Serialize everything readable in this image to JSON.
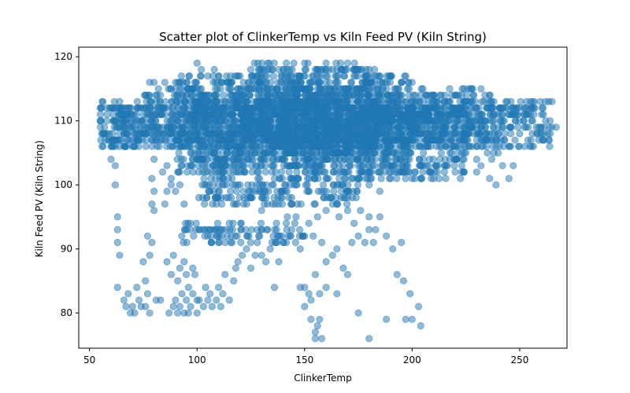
{
  "chart_data": {
    "type": "scatter",
    "title": "Scatter plot of ClinkerTemp vs Kiln Feed PV (Kiln String)",
    "xlabel": "ClinkerTemp",
    "ylabel": "Kiln Feed PV (Kiln String)",
    "xlim": [
      45,
      272
    ],
    "ylim": [
      74.5,
      121.5
    ],
    "xticks": [
      50,
      100,
      150,
      200,
      250
    ],
    "yticks": [
      80,
      90,
      100,
      110,
      120
    ],
    "grid": false,
    "marker_color": "#1f77b4",
    "marker_alpha": 0.5,
    "bands": [
      {
        "x": [
          55,
          265
        ],
        "y": [
          106,
          113
        ]
      },
      {
        "x": [
          75,
          238
        ],
        "y": [
          106,
          115
        ]
      },
      {
        "x": [
          90,
          200
        ],
        "y": [
          102,
          117
        ]
      },
      {
        "x": [
          125,
          185
        ],
        "y": [
          104,
          119
        ]
      },
      {
        "x": [
          100,
          225
        ],
        "y": [
          101,
          113
        ]
      },
      {
        "x": [
          100,
          175
        ],
        "y": [
          97,
          101
        ]
      },
      {
        "x": [
          92,
          150
        ],
        "y": [
          91,
          94
        ]
      },
      {
        "x": [
          60,
          75
        ],
        "y": [
          106,
          113
        ]
      }
    ],
    "points": [
      [
        55,
        110
      ],
      [
        56,
        113
      ],
      [
        57,
        109
      ],
      [
        58,
        108
      ],
      [
        60,
        112
      ],
      [
        61,
        107
      ],
      [
        62,
        103
      ],
      [
        62,
        100
      ],
      [
        63,
        95
      ],
      [
        63,
        93
      ],
      [
        63,
        91
      ],
      [
        64,
        89
      ],
      [
        63,
        84
      ],
      [
        61,
        111
      ],
      [
        64,
        113
      ],
      [
        66,
        110
      ],
      [
        65,
        107
      ],
      [
        62,
        106
      ],
      [
        60,
        104
      ],
      [
        66,
        82
      ],
      [
        67,
        81
      ],
      [
        68,
        83
      ],
      [
        69,
        80
      ],
      [
        70,
        81
      ],
      [
        71,
        80
      ],
      [
        72,
        84
      ],
      [
        73,
        82
      ],
      [
        74,
        81
      ],
      [
        76,
        81
      ],
      [
        77,
        83
      ],
      [
        78,
        80
      ],
      [
        75,
        88
      ],
      [
        76,
        85
      ],
      [
        77,
        92
      ],
      [
        78,
        89
      ],
      [
        79,
        91
      ],
      [
        80,
        99
      ],
      [
        79,
        97
      ],
      [
        80,
        96
      ],
      [
        80,
        104
      ],
      [
        79,
        101
      ],
      [
        81,
        82
      ],
      [
        83,
        82
      ],
      [
        87,
        80
      ],
      [
        89,
        81
      ],
      [
        90,
        82
      ],
      [
        91,
        80
      ],
      [
        92,
        81
      ],
      [
        93,
        83
      ],
      [
        94,
        80
      ],
      [
        95,
        82
      ],
      [
        96,
        80
      ],
      [
        97,
        81
      ],
      [
        98,
        83
      ],
      [
        100,
        80
      ],
      [
        86,
        88
      ],
      [
        88,
        86
      ],
      [
        89,
        89
      ],
      [
        91,
        85
      ],
      [
        92,
        87
      ],
      [
        94,
        88
      ],
      [
        95,
        86
      ],
      [
        96,
        84
      ],
      [
        98,
        87
      ],
      [
        99,
        86
      ],
      [
        100,
        82
      ],
      [
        85,
        97
      ],
      [
        86,
        99
      ],
      [
        88,
        100
      ],
      [
        90,
        99
      ],
      [
        92,
        100
      ],
      [
        94,
        97
      ],
      [
        84,
        102
      ],
      [
        86,
        103
      ],
      [
        88,
        101
      ],
      [
        101,
        82
      ],
      [
        103,
        81
      ],
      [
        104,
        84
      ],
      [
        105,
        82
      ],
      [
        106,
        83
      ],
      [
        107,
        81
      ],
      [
        109,
        82
      ],
      [
        110,
        84
      ],
      [
        111,
        81
      ],
      [
        112,
        83
      ],
      [
        113,
        86
      ],
      [
        115,
        82
      ],
      [
        117,
        85
      ],
      [
        118,
        87
      ],
      [
        119,
        88
      ],
      [
        121,
        89
      ],
      [
        123,
        90
      ],
      [
        125,
        87
      ],
      [
        127,
        89
      ],
      [
        128,
        91
      ],
      [
        130,
        89
      ],
      [
        132,
        88
      ],
      [
        134,
        90
      ],
      [
        136,
        84
      ],
      [
        138,
        88
      ],
      [
        140,
        91
      ],
      [
        142,
        95
      ],
      [
        144,
        93
      ],
      [
        146,
        95
      ],
      [
        148,
        90
      ],
      [
        150,
        92
      ],
      [
        152,
        94
      ],
      [
        154,
        92
      ],
      [
        156,
        95
      ],
      [
        158,
        91
      ],
      [
        150,
        84
      ],
      [
        152,
        83
      ],
      [
        153,
        82
      ],
      [
        155,
        86
      ],
      [
        157,
        83
      ],
      [
        160,
        84
      ],
      [
        165,
        83
      ],
      [
        150,
        81
      ],
      [
        148,
        84
      ],
      [
        153,
        79
      ],
      [
        155,
        77
      ],
      [
        156,
        78
      ],
      [
        157,
        79
      ],
      [
        158,
        76
      ],
      [
        155,
        76
      ],
      [
        160,
        88
      ],
      [
        163,
        89
      ],
      [
        165,
        90
      ],
      [
        168,
        87
      ],
      [
        170,
        86
      ],
      [
        172,
        91
      ],
      [
        175,
        92
      ],
      [
        178,
        91
      ],
      [
        180,
        93
      ],
      [
        182,
        91
      ],
      [
        185,
        95
      ],
      [
        160,
        96
      ],
      [
        163,
        97
      ],
      [
        166,
        95
      ],
      [
        170,
        96
      ],
      [
        173,
        94
      ],
      [
        176,
        96
      ],
      [
        180,
        95
      ],
      [
        183,
        93
      ],
      [
        175,
        80
      ],
      [
        180,
        76
      ],
      [
        188,
        79
      ],
      [
        193,
        86
      ],
      [
        197,
        79
      ],
      [
        196,
        85
      ],
      [
        199,
        83
      ],
      [
        200,
        79
      ],
      [
        204,
        78
      ],
      [
        203,
        81
      ],
      [
        188,
        92
      ],
      [
        191,
        90
      ],
      [
        195,
        91
      ],
      [
        175,
        101
      ],
      [
        180,
        100
      ],
      [
        185,
        99
      ],
      [
        190,
        101
      ],
      [
        195,
        102
      ],
      [
        200,
        101
      ],
      [
        205,
        102
      ],
      [
        210,
        101
      ],
      [
        215,
        102
      ],
      [
        220,
        102
      ],
      [
        230,
        102
      ],
      [
        232,
        103
      ],
      [
        236,
        101
      ],
      [
        239,
        100
      ],
      [
        242,
        103
      ],
      [
        245,
        101
      ],
      [
        247,
        103
      ],
      [
        240,
        108
      ],
      [
        243,
        107
      ],
      [
        246,
        109
      ],
      [
        248,
        110
      ],
      [
        250,
        108
      ],
      [
        252,
        111
      ],
      [
        254,
        109
      ],
      [
        256,
        110
      ],
      [
        258,
        108
      ],
      [
        260,
        109
      ],
      [
        262,
        110
      ],
      [
        265,
        109
      ],
      [
        267,
        109
      ],
      [
        248,
        111
      ],
      [
        252,
        112
      ],
      [
        255,
        113
      ],
      [
        245,
        106
      ],
      [
        240,
        105
      ],
      [
        238,
        105
      ],
      [
        242,
        112
      ],
      [
        246,
        113
      ],
      [
        250,
        112
      ],
      [
        225,
        105
      ],
      [
        228,
        106
      ],
      [
        232,
        107
      ],
      [
        235,
        105
      ],
      [
        237,
        104
      ],
      [
        230,
        104
      ],
      [
        140,
        118
      ],
      [
        145,
        119
      ],
      [
        150,
        119
      ],
      [
        155,
        118
      ],
      [
        160,
        119
      ],
      [
        165,
        118
      ],
      [
        170,
        119
      ],
      [
        175,
        118
      ],
      [
        180,
        118
      ],
      [
        185,
        117
      ],
      [
        190,
        117
      ],
      [
        195,
        116
      ],
      [
        100,
        119
      ],
      [
        102,
        118
      ],
      [
        105,
        117
      ],
      [
        108,
        118
      ],
      [
        110,
        117
      ],
      [
        115,
        116
      ],
      [
        120,
        117
      ],
      [
        125,
        118
      ],
      [
        130,
        117
      ],
      [
        135,
        118
      ],
      [
        78,
        116
      ],
      [
        80,
        116
      ],
      [
        82,
        115
      ],
      [
        85,
        116
      ],
      [
        88,
        115
      ],
      [
        90,
        116
      ],
      [
        93,
        115
      ],
      [
        95,
        116
      ],
      [
        98,
        115
      ],
      [
        200,
        116
      ],
      [
        205,
        115
      ],
      [
        210,
        114
      ],
      [
        215,
        113
      ],
      [
        220,
        114
      ],
      [
        225,
        113
      ],
      [
        230,
        112
      ],
      [
        235,
        112
      ],
      [
        238,
        113
      ],
      [
        60,
        106
      ],
      [
        62,
        107
      ],
      [
        64,
        106
      ],
      [
        66,
        108
      ],
      [
        68,
        107
      ],
      [
        70,
        106
      ],
      [
        72,
        107
      ],
      [
        88,
        108
      ],
      [
        92,
        106
      ],
      [
        96,
        110
      ],
      [
        100,
        112
      ],
      [
        105,
        108
      ],
      [
        110,
        104
      ],
      [
        115,
        102
      ],
      [
        120,
        100
      ],
      [
        125,
        98
      ],
      [
        130,
        96
      ],
      [
        135,
        97
      ],
      [
        140,
        99
      ]
    ]
  }
}
